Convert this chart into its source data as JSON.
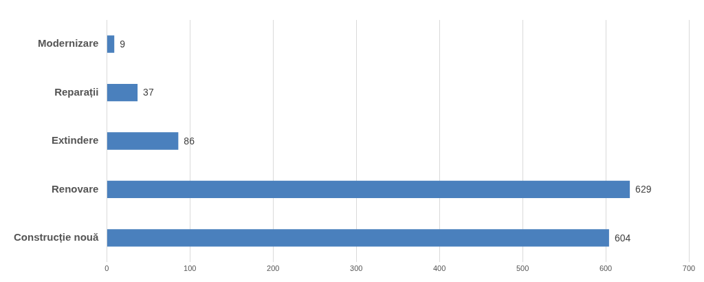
{
  "chart_data": {
    "type": "bar",
    "orientation": "horizontal",
    "categories": [
      "Modernizare",
      "Reparații",
      "Extindere",
      "Renovare",
      "Construcție nouă"
    ],
    "values": [
      9,
      37,
      86,
      629,
      604
    ],
    "color": "#4a80bd",
    "xlim": [
      0,
      700
    ],
    "xticks": [
      0,
      100,
      200,
      300,
      400,
      500,
      600,
      700
    ],
    "grid": "x",
    "data_labels": true,
    "legend": false
  }
}
